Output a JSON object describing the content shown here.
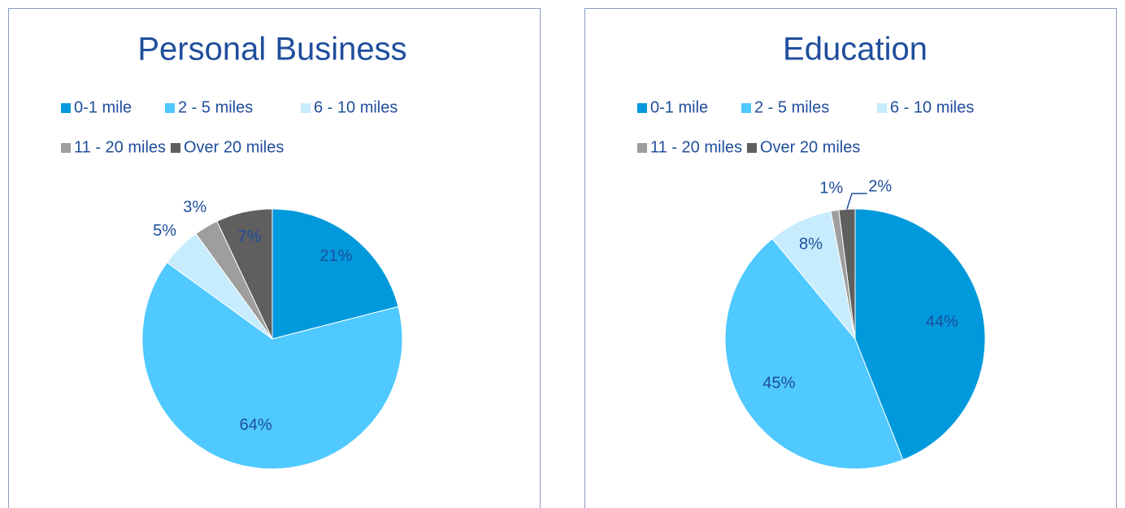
{
  "chart_data": [
    {
      "type": "pie",
      "title": "Personal Business",
      "categories": [
        "0-1 mile",
        "2 - 5 miles",
        "6 - 10 miles",
        "11 - 20 miles",
        "Over 20 miles"
      ],
      "values": [
        21,
        64,
        5,
        3,
        7
      ],
      "value_labels": [
        "21%",
        "64%",
        "5%",
        "3%",
        "7%"
      ],
      "colors": [
        "#0099dc",
        "#4fc9ff",
        "#c6ecfd",
        "#9e9e9e",
        "#5f5f5f"
      ]
    },
    {
      "type": "pie",
      "title": "Education",
      "categories": [
        "0-1 mile",
        "2 - 5 miles",
        "6 - 10 miles",
        "11 - 20 miles",
        "Over 20 miles"
      ],
      "values": [
        44,
        45,
        8,
        1,
        2
      ],
      "value_labels": [
        "44%",
        "45%",
        "8%",
        "1%",
        "2%"
      ],
      "colors": [
        "#0099dc",
        "#4fc9ff",
        "#c6ecfd",
        "#9e9e9e",
        "#5f5f5f"
      ]
    }
  ]
}
